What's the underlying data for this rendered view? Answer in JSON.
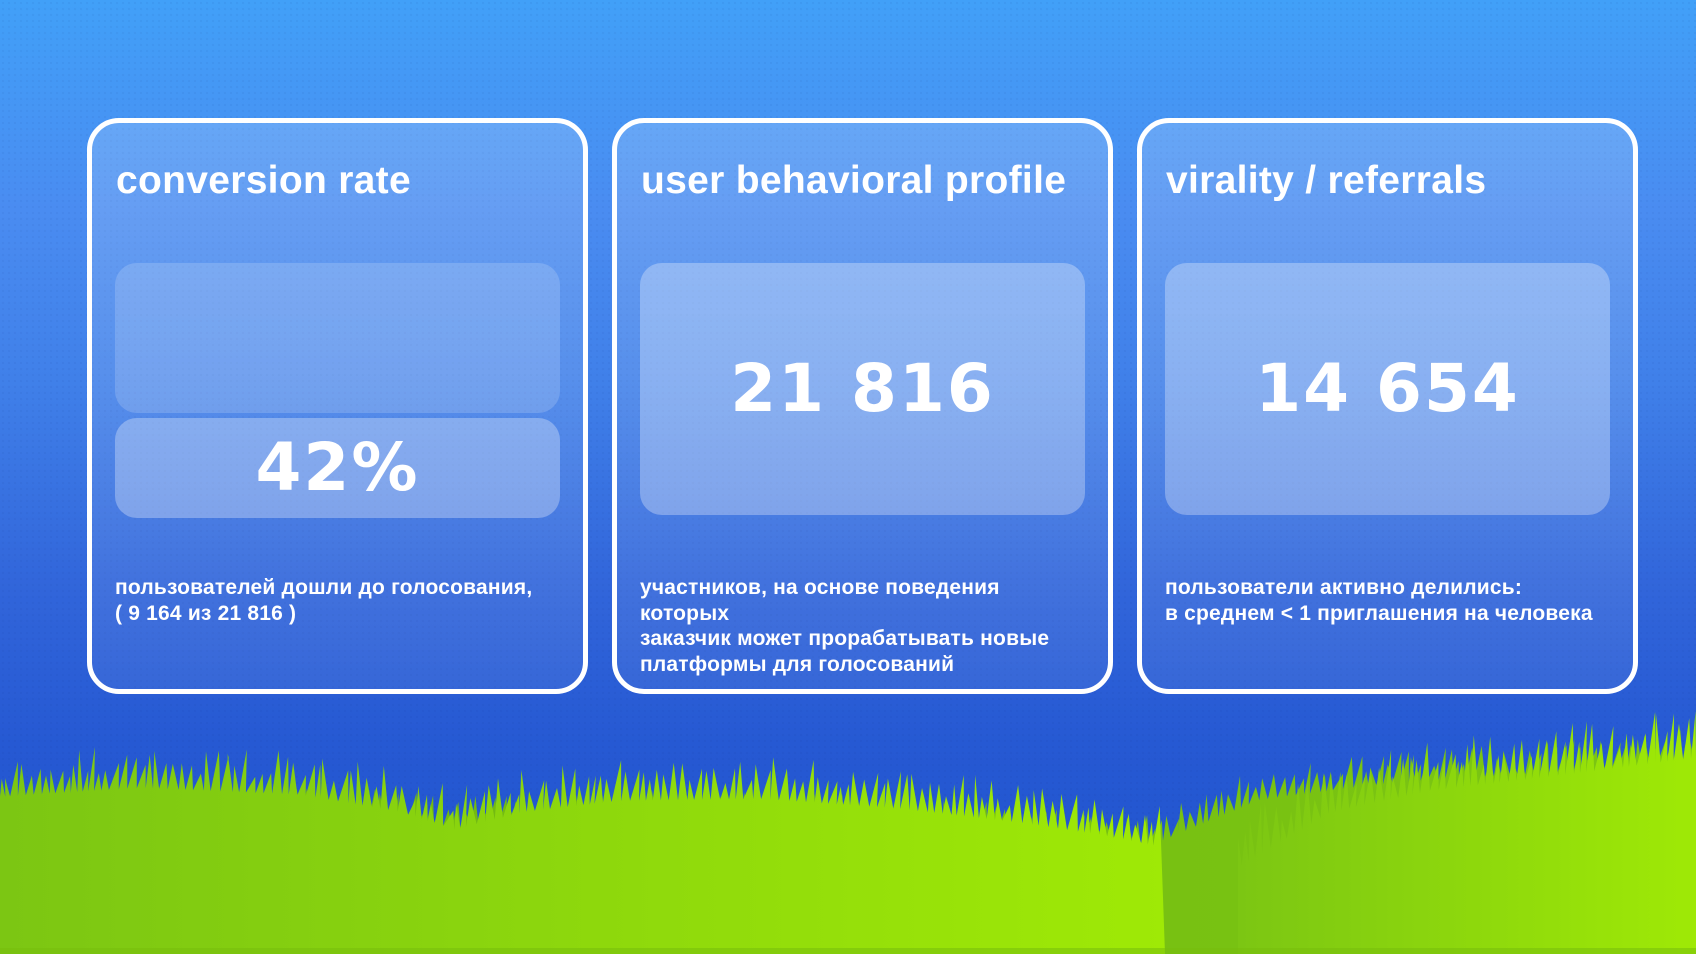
{
  "slide": {
    "cards": [
      {
        "title": "conversion rate",
        "value": "42%",
        "caption": "пользователей дошли до голосования,\n( 9 164 из 21 816 )"
      },
      {
        "title": "user behavioral profile",
        "value": "21 816",
        "caption": "участников, на основе поведения которых\nзаказчик может прорабатывать новые\nплатформы для голосований"
      },
      {
        "title": "virality / referrals",
        "value": "14 654",
        "caption": "пользователи активно делились:\nв среднем < 1 приглашения на человека"
      }
    ]
  },
  "theme": {
    "sky_top": "#41a0f8",
    "sky_bottom": "#2154ce",
    "card_border": "#ffffff",
    "text_color": "#ffffff",
    "panel_tint": "#8fadf1",
    "grass_front_light": "#9fe906",
    "grass_front_dark": "#7cc613",
    "grass_back": "#6fb611",
    "grass_edge": "#76bd0d"
  }
}
